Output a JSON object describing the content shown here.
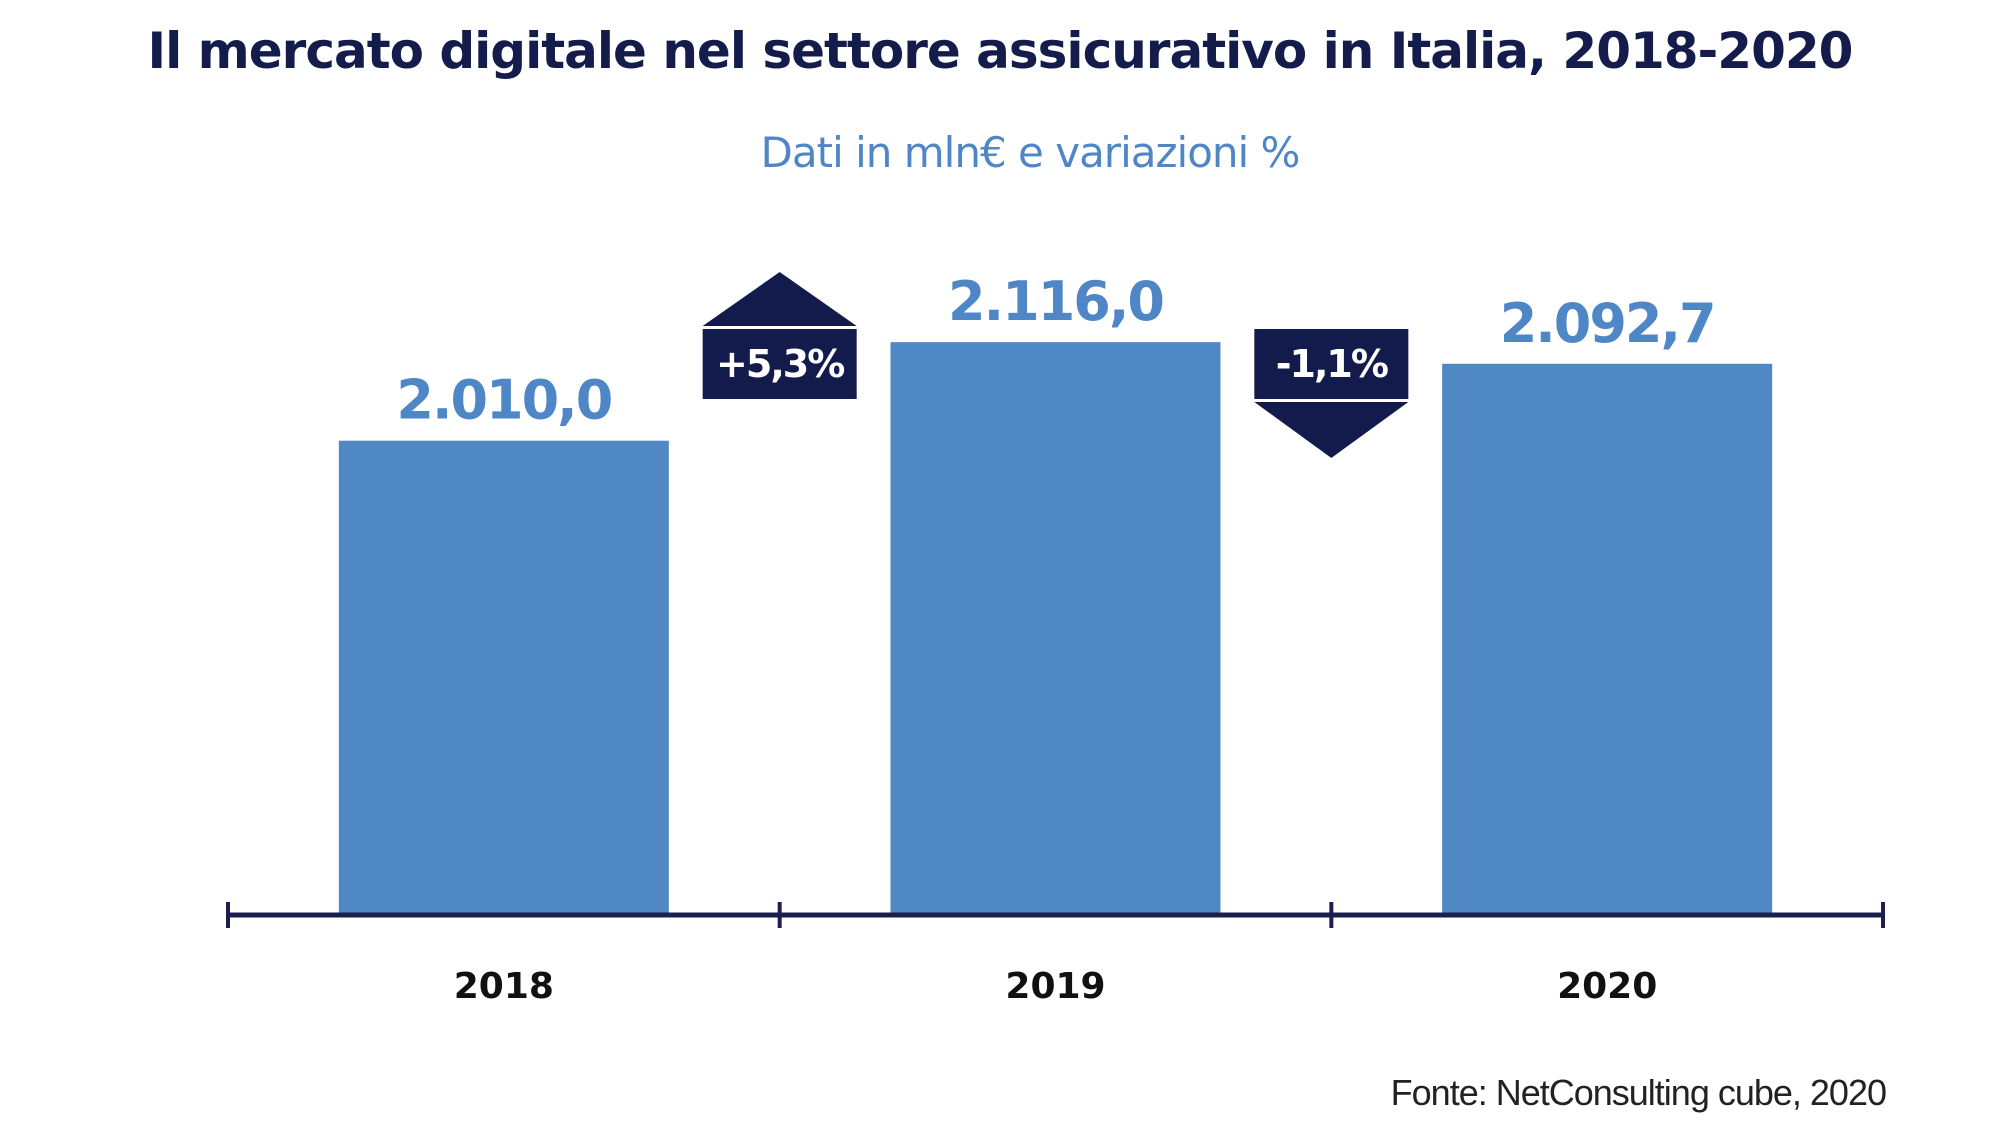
{
  "chart_data": {
    "type": "bar",
    "title": "Il mercato digitale nel settore assicurativo in Italia, 2018-2020",
    "subtitle": "Dati in mln€ e variazioni %",
    "categories": [
      "2018",
      "2019",
      "2020"
    ],
    "values": [
      2010.0,
      2116.0,
      2092.7
    ],
    "value_labels": [
      "2.010,0",
      "2.116,0",
      "2.092,7"
    ],
    "changes": [
      {
        "label": "+5,3%",
        "direction": "up",
        "value": 5.3
      },
      {
        "label": "-1,1%",
        "direction": "down",
        "value": -1.1
      }
    ],
    "xlabel": "",
    "ylabel": "",
    "grid": false,
    "legend": "none",
    "source": "Fonte: NetConsulting cube, 2020",
    "colors": {
      "bar": "#5088c6",
      "badge": "#131b4d",
      "axis": "#1a1f4e",
      "value_label": "#4f86c6"
    }
  }
}
